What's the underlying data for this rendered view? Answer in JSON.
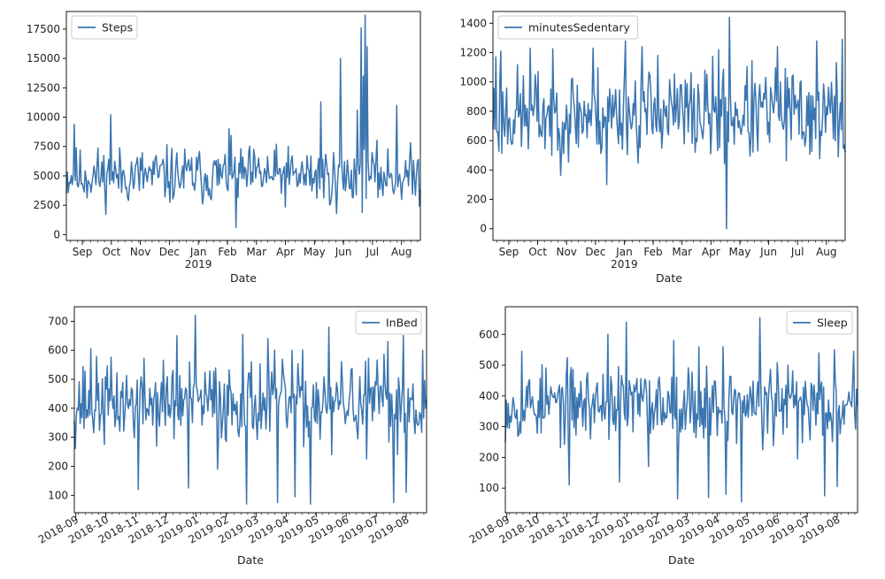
{
  "figure": {
    "line_color": "#3a75b0"
  },
  "chart_data": [
    {
      "type": "line",
      "series": [
        {
          "name": "Steps"
        }
      ],
      "legend": "Steps",
      "legend_position": "top-left",
      "xlabel": "Date",
      "ylabel": "",
      "ylim": [
        -500,
        19000
      ],
      "yticks": [
        0,
        2500,
        5000,
        7500,
        10000,
        12500,
        15000,
        17500
      ],
      "xticks": [
        "Sep",
        "Oct",
        "Nov",
        "Dec",
        "Jan",
        "Feb",
        "Mar",
        "Apr",
        "May",
        "Jun",
        "Jul",
        "Aug"
      ],
      "xtick_sublabel": "2019",
      "x_range_days": [
        0,
        359
      ],
      "base": 5000,
      "amp": 1200,
      "seed": 11,
      "spikes": [
        [
          8,
          9400
        ],
        [
          45,
          10200
        ],
        [
          165,
          9000
        ],
        [
          172,
          600
        ],
        [
          258,
          11300
        ],
        [
          274,
          1800
        ],
        [
          278,
          15000
        ],
        [
          295,
          10600
        ],
        [
          299,
          17600
        ],
        [
          301,
          13500
        ],
        [
          303,
          18700
        ],
        [
          305,
          16000
        ],
        [
          335,
          11000
        ]
      ]
    },
    {
      "type": "line",
      "series": [
        {
          "name": "minutesSedentary"
        }
      ],
      "legend": "minutesSedentary",
      "legend_position": "top-left",
      "xlabel": "Date",
      "ylabel": "",
      "ylim": [
        -80,
        1480
      ],
      "yticks": [
        0,
        200,
        400,
        600,
        800,
        1000,
        1200,
        1400
      ],
      "xticks": [
        "Sep",
        "Oct",
        "Nov",
        "Dec",
        "Jan",
        "Feb",
        "Mar",
        "Apr",
        "May",
        "Jun",
        "Jul",
        "Aug"
      ],
      "xtick_sublabel": "2019",
      "x_range_days": [
        0,
        359
      ],
      "base": 780,
      "amp": 160,
      "seed": 23,
      "spikes": [
        [
          3,
          1170
        ],
        [
          8,
          1210
        ],
        [
          38,
          1230
        ],
        [
          102,
          1230
        ],
        [
          116,
          300
        ],
        [
          135,
          1280
        ],
        [
          152,
          1240
        ],
        [
          168,
          1180
        ],
        [
          230,
          1220
        ],
        [
          238,
          0
        ],
        [
          241,
          1440
        ],
        [
          290,
          1240
        ],
        [
          330,
          1280
        ],
        [
          356,
          1290
        ],
        [
          359,
          520
        ]
      ]
    },
    {
      "type": "line",
      "series": [
        {
          "name": "InBed"
        }
      ],
      "legend": "InBed",
      "legend_position": "top-right",
      "xlabel": "Date",
      "ylabel": "",
      "ylim": [
        40,
        750
      ],
      "yticks": [
        100,
        200,
        300,
        400,
        500,
        600,
        700
      ],
      "xticks": [
        "2018-09",
        "2018-10",
        "2018-11",
        "2018-12",
        "2019-01",
        "2019-02",
        "2019-03",
        "2019-04",
        "2019-05",
        "2019-06",
        "2019-07",
        "2019-08"
      ],
      "x_range_days": [
        0,
        364
      ],
      "base": 420,
      "amp": 70,
      "seed": 37,
      "spikes": [
        [
          17,
          605
        ],
        [
          66,
          120
        ],
        [
          106,
          650
        ],
        [
          118,
          125
        ],
        [
          125,
          720
        ],
        [
          148,
          190
        ],
        [
          174,
          655
        ],
        [
          178,
          70
        ],
        [
          200,
          640
        ],
        [
          210,
          75
        ],
        [
          225,
          600
        ],
        [
          228,
          95
        ],
        [
          244,
          70
        ],
        [
          263,
          680
        ],
        [
          266,
          240
        ],
        [
          302,
          225
        ],
        [
          324,
          630
        ],
        [
          330,
          75
        ],
        [
          340,
          650
        ],
        [
          343,
          110
        ],
        [
          360,
          600
        ]
      ]
    },
    {
      "type": "line",
      "series": [
        {
          "name": "Sleep"
        }
      ],
      "legend": "Sleep",
      "legend_position": "top-right",
      "xlabel": "Date",
      "ylabel": "",
      "ylim": [
        20,
        690
      ],
      "yticks": [
        100,
        200,
        300,
        400,
        500,
        600
      ],
      "xticks": [
        "2018-09",
        "2018-10",
        "2018-11",
        "2018-12",
        "2019-01",
        "2019-02",
        "2019-03",
        "2019-04",
        "2019-05",
        "2019-06",
        "2019-07",
        "2019-08"
      ],
      "x_range_days": [
        0,
        364
      ],
      "base": 375,
      "amp": 60,
      "seed": 53,
      "spikes": [
        [
          17,
          545
        ],
        [
          66,
          110
        ],
        [
          106,
          600
        ],
        [
          118,
          120
        ],
        [
          125,
          640
        ],
        [
          148,
          170
        ],
        [
          174,
          580
        ],
        [
          178,
          65
        ],
        [
          200,
          560
        ],
        [
          210,
          70
        ],
        [
          225,
          560
        ],
        [
          228,
          80
        ],
        [
          244,
          55
        ],
        [
          263,
          655
        ],
        [
          266,
          225
        ],
        [
          302,
          195
        ],
        [
          324,
          540
        ],
        [
          330,
          75
        ],
        [
          340,
          550
        ],
        [
          343,
          105
        ],
        [
          360,
          545
        ]
      ]
    }
  ]
}
